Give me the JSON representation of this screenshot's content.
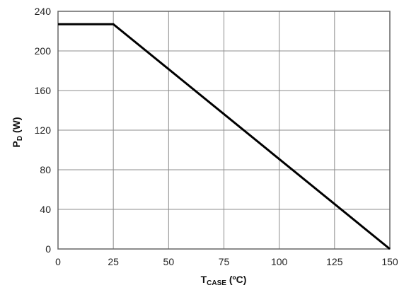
{
  "chart_data": {
    "type": "line",
    "title": "",
    "xlabel": {
      "main": "T",
      "sub": "CASE",
      "unit": " (ºC)"
    },
    "ylabel": {
      "main": "P",
      "sub": "D",
      "unit": " (W)"
    },
    "xlim": [
      0,
      150
    ],
    "ylim": [
      0,
      240
    ],
    "xticks": [
      0,
      25,
      50,
      75,
      100,
      125,
      150
    ],
    "yticks": [
      0,
      40,
      80,
      120,
      160,
      200,
      240
    ],
    "grid": true,
    "series": [
      {
        "x": [
          0,
          25,
          150
        ],
        "y": [
          227,
          227,
          0
        ]
      }
    ],
    "colors": {
      "line": "#000000",
      "grid": "#8c8c8c",
      "frame": "#666666"
    }
  }
}
